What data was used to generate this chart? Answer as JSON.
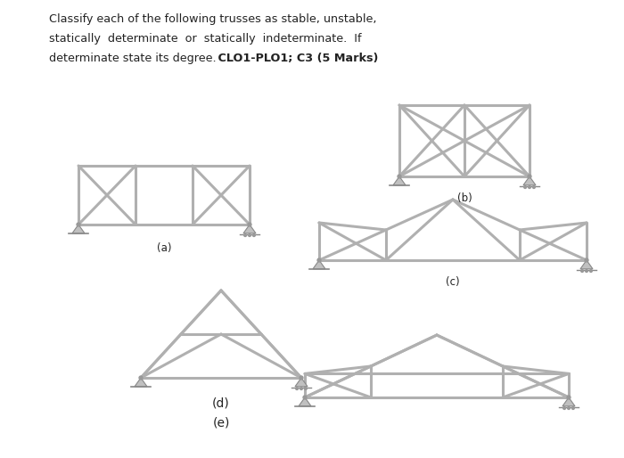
{
  "bg_color": "#ffffff",
  "text_color": "#222222",
  "member_color": "#b0b0b0",
  "member_lw": 2.2,
  "label_a": "(a)",
  "label_b": "(b)",
  "label_c": "(c)",
  "label_d": "(d)",
  "label_e": "(e)",
  "header_lines": [
    "Classify each of the following trusses as stable, unstable,",
    "statically  determinate  or  statically  indeterminate.  If",
    "determinate state its degree."
  ],
  "header_bold": " CLO1-PLO1; C3 (5 Marks)"
}
